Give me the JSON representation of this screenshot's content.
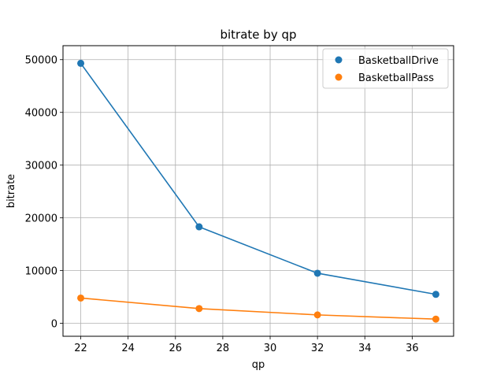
{
  "chart_data": {
    "type": "line",
    "title": "bitrate by qp",
    "xlabel": "qp",
    "ylabel": "bitrate",
    "x": [
      22,
      27,
      32,
      37
    ],
    "xlim": [
      21.25,
      37.75
    ],
    "ylim": [
      -2450,
      52650
    ],
    "xticks": [
      22,
      24,
      26,
      28,
      30,
      32,
      34,
      36
    ],
    "yticks": [
      0,
      10000,
      20000,
      30000,
      40000,
      50000
    ],
    "grid": true,
    "legend_position": "top-right",
    "series": [
      {
        "name": "BasketballDrive",
        "color": "#1f77b4",
        "values": [
          49300,
          18300,
          9500,
          5500
        ]
      },
      {
        "name": "BasketballPass",
        "color": "#ff7f0e",
        "values": [
          4800,
          2800,
          1600,
          800
        ]
      }
    ]
  }
}
